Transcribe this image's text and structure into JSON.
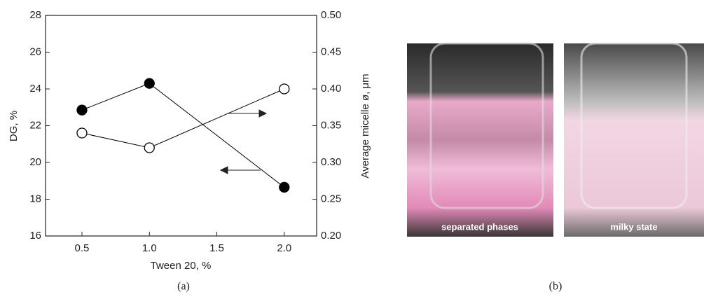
{
  "chart_data": {
    "type": "line",
    "x_label": "Tween 20, %",
    "y_label": "DG, %",
    "y2_label": "Average micelle ø, μm",
    "x": [
      0.5,
      1.0,
      2.0
    ],
    "series": [
      {
        "color": "#000000",
        "fill": "#000000",
        "values": [
          22.85,
          24.3,
          18.65
        ]
      },
      {
        "color": "#000000",
        "fill": "#ffffff",
        "axis": "y2",
        "values": [
          0.34,
          0.32,
          0.4
        ]
      }
    ],
    "xlim": [
      0.23,
      2.24
    ],
    "xticks": [
      0.5,
      {
        "value": 1,
        "label": "1.0"
      },
      1.5,
      {
        "value": 2,
        "label": "2.0"
      }
    ],
    "ylim": [
      16,
      28
    ],
    "yticks": [
      16,
      18,
      20,
      22,
      24,
      26,
      28
    ],
    "y2lim": [
      0.2,
      0.5
    ],
    "y2ticks": [
      {
        "value": 0.2,
        "label": "0.20"
      },
      0.25,
      {
        "value": 0.3,
        "label": "0.30"
      },
      0.35,
      {
        "value": 0.4,
        "label": "0.40"
      },
      0.45,
      {
        "value": 0.5,
        "label": "0.50"
      }
    ]
  },
  "panel_labels": [
    "(a)",
    "(b)"
  ],
  "photos": [
    {
      "caption": "separated phases"
    },
    {
      "caption": "milky state"
    }
  ]
}
